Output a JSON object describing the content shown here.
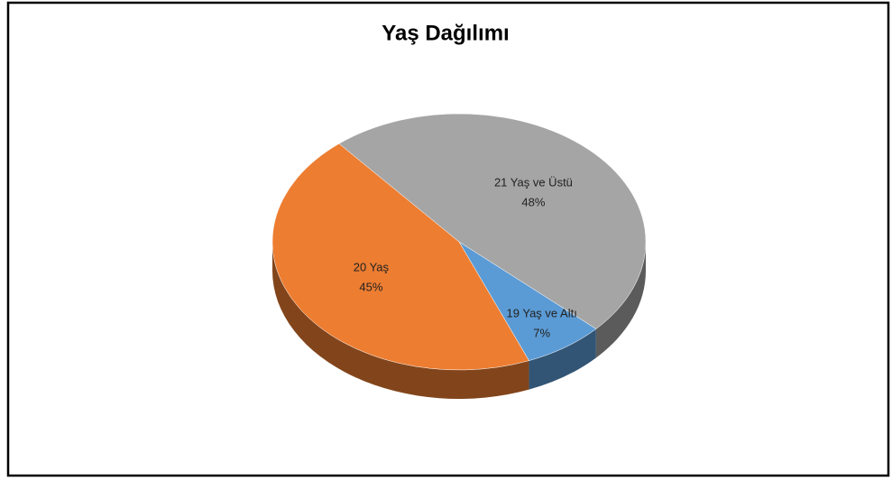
{
  "chart_data": {
    "type": "pie",
    "title": "Yaş Dağılımı",
    "categories": [
      "21 Yaş ve Üstü",
      "19 Yaş ve Altı",
      "20 Yaş"
    ],
    "values": [
      48,
      7,
      45
    ],
    "value_labels": [
      "48%",
      "7%",
      "45%"
    ],
    "colors": [
      "#a5a5a5",
      "#5b9bd5",
      "#ed7d31"
    ]
  }
}
